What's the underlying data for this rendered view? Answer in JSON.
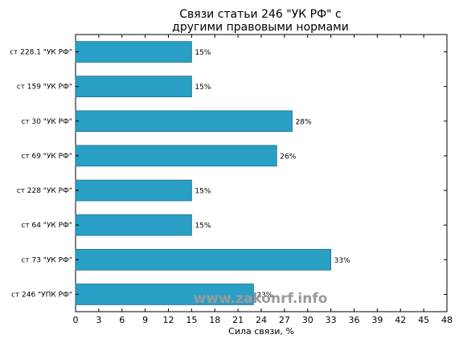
{
  "chart_data": {
    "type": "bar",
    "orientation": "horizontal",
    "title_lines": [
      "Связи статьи 246 \"УК РФ\" с",
      "другими правовыми нормами"
    ],
    "xlabel": "Сила связи, %",
    "ylabel": "",
    "xlim": [
      0,
      48
    ],
    "xticks": [
      0,
      3,
      6,
      9,
      12,
      15,
      18,
      21,
      24,
      27,
      30,
      33,
      36,
      39,
      42,
      45,
      48
    ],
    "categories": [
      "ст 228.1 \"УК РФ\"",
      "ст 159 \"УК РФ\"",
      "ст 30 \"УК РФ\"",
      "ст 69 \"УК РФ\"",
      "ст 228 \"УК РФ\"",
      "ст 64 \"УК РФ\"",
      "ст 73 \"УК РФ\"",
      "ст 246 \"УПК РФ\""
    ],
    "values": [
      15,
      15,
      28,
      26,
      15,
      15,
      33,
      23
    ],
    "data_labels": [
      "15%",
      "15%",
      "28%",
      "26%",
      "15%",
      "15%",
      "33%",
      "23%"
    ],
    "bar_color": "#2a9fc5",
    "bar_edge_color": "#1b6f8c",
    "grid": false
  },
  "watermark": {
    "text": "www.zakonrf.info"
  }
}
